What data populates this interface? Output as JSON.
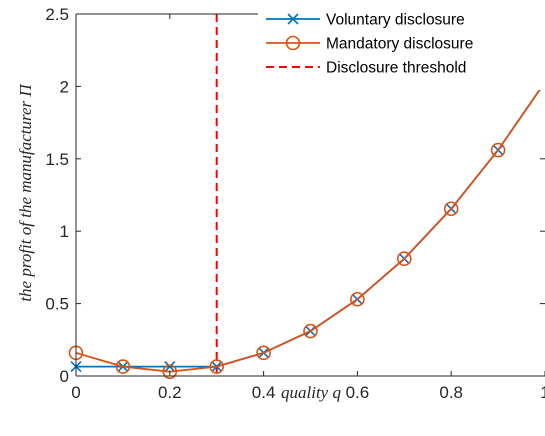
{
  "chart_data": {
    "type": "line",
    "xlabel": "quality q",
    "ylabel": "the profit of the manufacturer Π",
    "xlim": [
      0,
      1
    ],
    "ylim": [
      0,
      2.5
    ],
    "xticks": [
      "0",
      "0.2",
      "0.4",
      "0.6",
      "0.8",
      "1"
    ],
    "yticks": [
      "0",
      "0.5",
      "1",
      "1.5",
      "2",
      "2.5"
    ],
    "grid": false,
    "legend_position": "top-right",
    "series": [
      {
        "name": "Voluntary disclosure",
        "color": "#0072BD",
        "marker": "x",
        "x": [
          0,
          0.1,
          0.2,
          0.3,
          0.4,
          0.5,
          0.6,
          0.7,
          0.8,
          0.9,
          1.0
        ],
        "values": [
          0.065,
          0.065,
          0.065,
          0.065,
          0.16,
          0.31,
          0.53,
          0.81,
          1.155,
          1.56,
          2.03
        ]
      },
      {
        "name": "Mandatory disclosure",
        "color": "#D95319",
        "marker": "o",
        "x": [
          0,
          0.1,
          0.2,
          0.3,
          0.4,
          0.5,
          0.6,
          0.7,
          0.8,
          0.9,
          1.0
        ],
        "values": [
          0.16,
          0.065,
          0.03,
          0.065,
          0.16,
          0.31,
          0.53,
          0.81,
          1.155,
          1.56,
          2.03
        ]
      }
    ],
    "threshold": {
      "name": "Disclosure threshold",
      "color": "#FF0000",
      "style": "dashed",
      "x": 0.3
    }
  }
}
